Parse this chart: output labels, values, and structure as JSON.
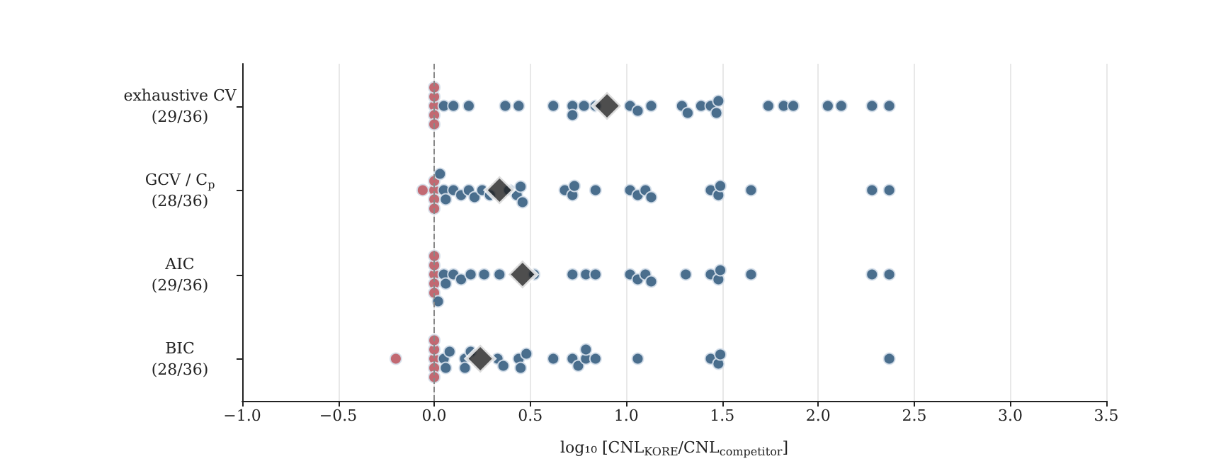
{
  "chart_data": {
    "type": "scatter",
    "orientation": "horizontal",
    "categories": [
      "exhaustive CV\n(29/36)",
      "GCV / C$_{p}$\n(28/36)",
      "AIC\n(29/36)",
      "BIC\n(28/36)"
    ],
    "xlabel": "log₁₀ [CNL$_{KORE}$/CNL$_{competitor}$]",
    "xlim": [
      -1,
      3.5
    ],
    "xticks": [
      {
        "value": -1,
        "label": "−1.0"
      },
      {
        "value": -0.5,
        "label": "−0.5"
      },
      {
        "value": 0,
        "label": "0.0"
      },
      {
        "value": 0.5,
        "label": "0.5"
      },
      {
        "value": 1,
        "label": "1.0"
      },
      {
        "value": 1.5,
        "label": "1.5"
      },
      {
        "value": 2,
        "label": "2.0"
      },
      {
        "value": 2.5,
        "label": "2.5"
      },
      {
        "value": 3,
        "label": "3.0"
      },
      {
        "value": 3.5,
        "label": "3.5"
      }
    ],
    "grid": "x",
    "ref_lines": [
      {
        "axis": "x",
        "value": 0,
        "line_style": "dashed",
        "color": "#888888"
      }
    ],
    "series": [
      {
        "marker": "circle",
        "color": "#bd5c66",
        "x": [
          "exhaustive CV\n(29/36)",
          "exhaustive CV\n(29/36)",
          "exhaustive CV\n(29/36)",
          "exhaustive CV\n(29/36)",
          "exhaustive CV\n(29/36)",
          "GCV / C$_{p}$\n(28/36)",
          "GCV / C$_{p}$\n(28/36)",
          "GCV / C$_{p}$\n(28/36)",
          "GCV / C$_{p}$\n(28/36)",
          "GCV / C$_{p}$\n(28/36)",
          "AIC\n(29/36)",
          "AIC\n(29/36)",
          "AIC\n(29/36)",
          "AIC\n(29/36)",
          "AIC\n(29/36)",
          "BIC\n(28/36)",
          "BIC\n(28/36)",
          "BIC\n(28/36)",
          "BIC\n(28/36)",
          "BIC\n(28/36)",
          "BIC\n(28/36)"
        ],
        "values": [
          0,
          0,
          0,
          0,
          0,
          -0.06,
          0,
          0,
          0,
          0,
          0,
          0,
          0,
          0,
          0,
          -0.2,
          0,
          0,
          0,
          0,
          0
        ]
      },
      {
        "marker": "circle",
        "color": "#3b6283",
        "x": [
          "exhaustive CV\n(29/36)",
          "exhaustive CV\n(29/36)",
          "exhaustive CV\n(29/36)",
          "exhaustive CV\n(29/36)",
          "exhaustive CV\n(29/36)",
          "exhaustive CV\n(29/36)",
          "exhaustive CV\n(29/36)",
          "exhaustive CV\n(29/36)",
          "exhaustive CV\n(29/36)",
          "exhaustive CV\n(29/36)",
          "exhaustive CV\n(29/36)",
          "exhaustive CV\n(29/36)",
          "exhaustive CV\n(29/36)",
          "exhaustive CV\n(29/36)",
          "exhaustive CV\n(29/36)",
          "exhaustive CV\n(29/36)",
          "exhaustive CV\n(29/36)",
          "exhaustive CV\n(29/36)",
          "exhaustive CV\n(29/36)",
          "exhaustive CV\n(29/36)",
          "exhaustive CV\n(29/36)",
          "exhaustive CV\n(29/36)",
          "exhaustive CV\n(29/36)",
          "exhaustive CV\n(29/36)",
          "exhaustive CV\n(29/36)",
          "exhaustive CV\n(29/36)",
          "GCV / C$_{p}$\n(28/36)",
          "GCV / C$_{p}$\n(28/36)",
          "GCV / C$_{p}$\n(28/36)",
          "GCV / C$_{p}$\n(28/36)",
          "GCV / C$_{p}$\n(28/36)",
          "GCV / C$_{p}$\n(28/36)",
          "GCV / C$_{p}$\n(28/36)",
          "GCV / C$_{p}$\n(28/36)",
          "GCV / C$_{p}$\n(28/36)",
          "GCV / C$_{p}$\n(28/36)",
          "GCV / C$_{p}$\n(28/36)",
          "GCV / C$_{p}$\n(28/36)",
          "GCV / C$_{p}$\n(28/36)",
          "GCV / C$_{p}$\n(28/36)",
          "GCV / C$_{p}$\n(28/36)",
          "GCV / C$_{p}$\n(28/36)",
          "GCV / C$_{p}$\n(28/36)",
          "GCV / C$_{p}$\n(28/36)",
          "GCV / C$_{p}$\n(28/36)",
          "GCV / C$_{p}$\n(28/36)",
          "GCV / C$_{p}$\n(28/36)",
          "GCV / C$_{p}$\n(28/36)",
          "GCV / C$_{p}$\n(28/36)",
          "GCV / C$_{p}$\n(28/36)",
          "GCV / C$_{p}$\n(28/36)",
          "GCV / C$_{p}$\n(28/36)",
          "GCV / C$_{p}$\n(28/36)",
          "AIC\n(29/36)",
          "AIC\n(29/36)",
          "AIC\n(29/36)",
          "AIC\n(29/36)",
          "AIC\n(29/36)",
          "AIC\n(29/36)",
          "AIC\n(29/36)",
          "AIC\n(29/36)",
          "AIC\n(29/36)",
          "AIC\n(29/36)",
          "AIC\n(29/36)",
          "AIC\n(29/36)",
          "AIC\n(29/36)",
          "AIC\n(29/36)",
          "AIC\n(29/36)",
          "AIC\n(29/36)",
          "AIC\n(29/36)",
          "AIC\n(29/36)",
          "AIC\n(29/36)",
          "AIC\n(29/36)",
          "AIC\n(29/36)",
          "AIC\n(29/36)",
          "AIC\n(29/36)",
          "BIC\n(28/36)",
          "BIC\n(28/36)",
          "BIC\n(28/36)",
          "BIC\n(28/36)",
          "BIC\n(28/36)",
          "BIC\n(28/36)",
          "BIC\n(28/36)",
          "BIC\n(28/36)",
          "BIC\n(28/36)",
          "BIC\n(28/36)",
          "BIC\n(28/36)",
          "BIC\n(28/36)",
          "BIC\n(28/36)",
          "BIC\n(28/36)",
          "BIC\n(28/36)",
          "BIC\n(28/36)",
          "BIC\n(28/36)",
          "BIC\n(28/36)",
          "BIC\n(28/36)",
          "BIC\n(28/36)",
          "BIC\n(28/36)",
          "BIC\n(28/36)"
        ],
        "values": [
          0.05,
          0.1,
          0.18,
          0.37,
          0.44,
          0.62,
          0.72,
          0.72,
          0.78,
          0.84,
          1.02,
          1.06,
          1.13,
          1.29,
          1.32,
          1.39,
          1.44,
          1.47,
          1.48,
          1.74,
          1.82,
          1.87,
          2.05,
          2.12,
          2.28,
          2.37,
          0.03,
          0.05,
          0.06,
          0.1,
          0.14,
          0.18,
          0.21,
          0.25,
          0.29,
          0.39,
          0.43,
          0.45,
          0.46,
          0.68,
          0.72,
          0.73,
          0.84,
          1.02,
          1.06,
          1.1,
          1.13,
          1.44,
          1.48,
          1.49,
          1.65,
          2.28,
          2.37,
          0.02,
          0.05,
          0.06,
          0.1,
          0.14,
          0.19,
          0.26,
          0.34,
          0.52,
          0.72,
          0.79,
          0.84,
          1.02,
          1.06,
          1.1,
          1.13,
          1.31,
          1.44,
          1.48,
          1.49,
          1.65,
          2.28,
          2.37,
          0.05,
          0.06,
          0.08,
          0.16,
          0.16,
          0.19,
          0.33,
          0.36,
          0.44,
          0.45,
          0.48,
          0.62,
          0.72,
          0.75,
          0.79,
          0.79,
          0.84,
          1.06,
          1.44,
          1.48,
          1.49,
          2.37
        ]
      },
      {
        "marker": "diamond",
        "color": "#222222",
        "x": [
          "exhaustive CV\n(29/36)",
          "GCV / C$_{p}$\n(28/36)",
          "AIC\n(29/36)",
          "BIC\n(28/36)"
        ],
        "values": [
          0.9,
          0.34,
          0.46,
          0.24
        ]
      }
    ]
  }
}
